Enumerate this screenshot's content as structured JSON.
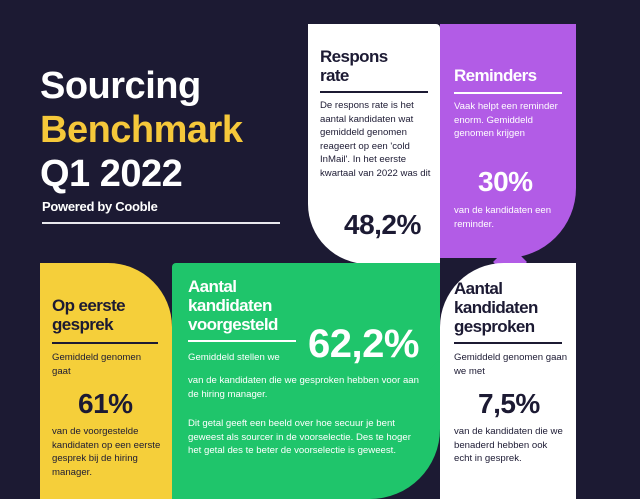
{
  "header": {
    "title_line1": "Sourcing",
    "title_line2": "Benchmark",
    "title_line3": "Q1 2022",
    "powered_by": "Powered by Cooble"
  },
  "response_rate": {
    "title_line1": "Respons",
    "title_line2": "rate",
    "text": "De respons rate is het aantal kandidaten wat gemiddeld genomen reageert op een 'cold InMail'. In het eerste kwartaal van 2022 was dit",
    "value": "48,2%"
  },
  "reminders": {
    "title": "Reminders",
    "text": "Vaak helpt een reminder enorm. Gemiddeld genomen krijgen",
    "value": "30%",
    "suffix": "van de kandidaten een reminder."
  },
  "first_interview": {
    "title_line1": "Op eerste",
    "title_line2": "gesprek",
    "text": "Gemiddeld genomen gaat",
    "value": "61%",
    "suffix": "van de voorgestelde kandidaten op een eerste gesprek bij de hiring manager."
  },
  "candidates_proposed": {
    "title_line1": "Aantal",
    "title_line2": "kandidaten",
    "title_line3": "voorgesteld",
    "text": "Gemiddeld stellen we",
    "value": "62,2%",
    "suffix": "van de kandidaten die we gesproken hebben voor aan de hiring manager.",
    "note": "Dit getal geeft een beeld over hoe secuur je bent geweest als sourcer in de voorselectie. Des te hoger het getal des te beter de voorselectie is geweest."
  },
  "candidates_spoken": {
    "title_line1": "Aantal",
    "title_line2": "kandidaten",
    "title_line3": "gesproken",
    "text": "Gemiddeld genomen gaan we met",
    "value": "7,5%",
    "suffix": "van de kandidaten die we benaderd hebben ook echt in gesprek."
  },
  "colors": {
    "background": "#1c1a33",
    "yellow": "#f5cf3a",
    "purple": "#b25ce6",
    "green": "#1fc56b",
    "white": "#ffffff"
  }
}
